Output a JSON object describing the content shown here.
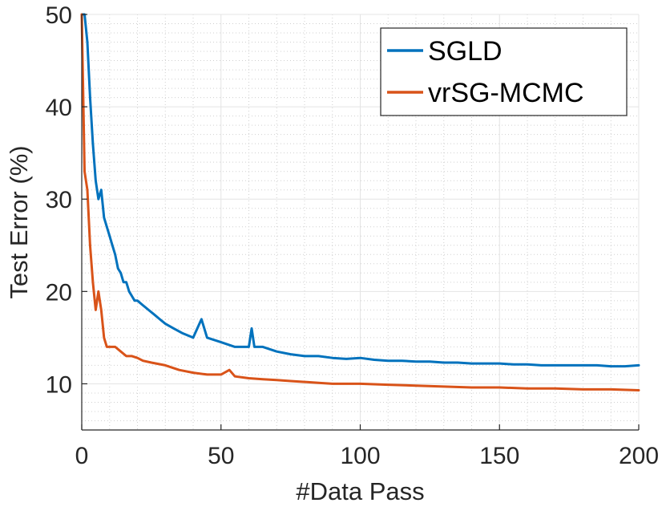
{
  "chart_data": {
    "type": "line",
    "title": "",
    "xlabel": "#Data Pass",
    "ylabel": "Test Error (%)",
    "xlim": [
      0,
      200
    ],
    "ylim": [
      5,
      50
    ],
    "xticks": [
      0,
      50,
      100,
      150,
      200
    ],
    "yticks": [
      10,
      20,
      30,
      40,
      50
    ],
    "grid": true,
    "minor_grid": true,
    "legend": "top-right",
    "series": [
      {
        "name": "SGLD",
        "color": "#0072BD",
        "x": [
          0,
          1,
          2,
          3,
          4,
          5,
          6,
          7,
          8,
          9,
          10,
          11,
          12,
          13,
          14,
          15,
          16,
          17,
          18,
          19,
          20,
          22,
          24,
          26,
          28,
          30,
          33,
          36,
          40,
          43,
          45,
          50,
          55,
          60,
          61,
          62,
          65,
          70,
          75,
          80,
          85,
          90,
          95,
          100,
          105,
          110,
          115,
          120,
          125,
          130,
          135,
          140,
          145,
          150,
          155,
          160,
          165,
          170,
          175,
          180,
          185,
          190,
          195,
          200
        ],
        "values": [
          50,
          50,
          47,
          41,
          36,
          32,
          30,
          31,
          28,
          27,
          26,
          25,
          24,
          22.5,
          22,
          21,
          21,
          20,
          19.5,
          19,
          19,
          18.5,
          18,
          17.5,
          17,
          16.5,
          16,
          15.5,
          15,
          17,
          15,
          14.5,
          14,
          14,
          16,
          14,
          14,
          13.5,
          13.2,
          13,
          13,
          12.8,
          12.7,
          12.8,
          12.6,
          12.5,
          12.5,
          12.4,
          12.4,
          12.3,
          12.3,
          12.2,
          12.2,
          12.2,
          12.1,
          12.1,
          12,
          12,
          12,
          12,
          12,
          11.9,
          11.9,
          12
        ]
      },
      {
        "name": "vrSG-MCMC",
        "color": "#D95319",
        "x": [
          0,
          1,
          2,
          3,
          4,
          5,
          6,
          7,
          8,
          9,
          10,
          12,
          14,
          16,
          18,
          20,
          22,
          25,
          30,
          35,
          40,
          45,
          50,
          53,
          55,
          60,
          65,
          70,
          75,
          80,
          85,
          90,
          95,
          100,
          110,
          120,
          130,
          140,
          150,
          160,
          170,
          180,
          190,
          200
        ],
        "values": [
          50,
          33,
          31,
          25,
          21,
          18,
          20,
          18,
          15,
          14,
          14,
          14,
          13.5,
          13,
          13,
          12.8,
          12.5,
          12.3,
          12,
          11.5,
          11.2,
          11,
          11,
          11.5,
          10.8,
          10.6,
          10.5,
          10.4,
          10.3,
          10.2,
          10.1,
          10,
          10,
          10,
          9.9,
          9.8,
          9.7,
          9.6,
          9.6,
          9.5,
          9.5,
          9.4,
          9.4,
          9.3
        ]
      }
    ]
  }
}
